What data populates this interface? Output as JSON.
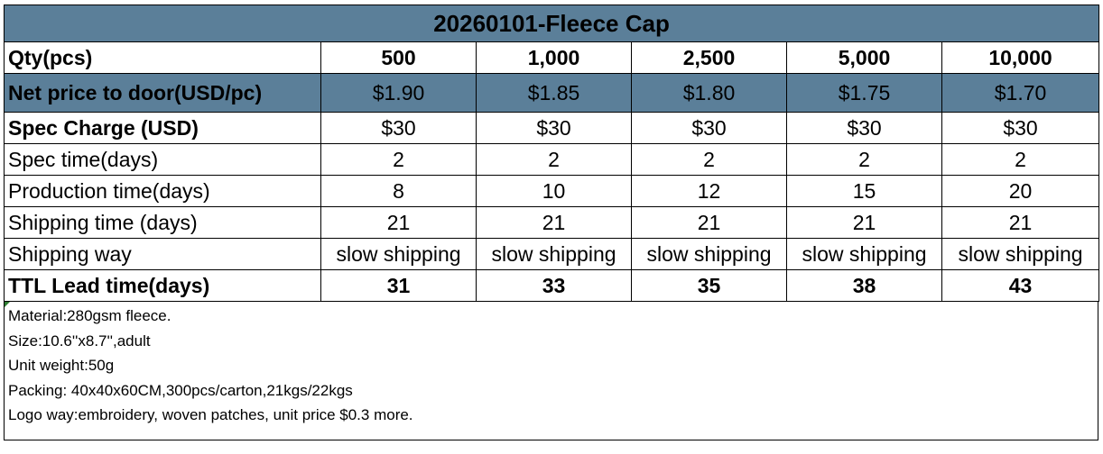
{
  "title": "20260101-Fleece Cap",
  "qty": {
    "label": "Qty(pcs)",
    "values": [
      "500",
      "1,000",
      "2,500",
      "5,000",
      "10,000"
    ]
  },
  "net_price": {
    "label": "Net price to door(USD/pc)",
    "values": [
      "$1.90",
      "$1.85",
      "$1.80",
      "$1.75",
      "$1.70"
    ]
  },
  "spec_charge": {
    "label": "Spec Charge (USD)",
    "values": [
      "$30",
      "$30",
      "$30",
      "$30",
      "$30"
    ]
  },
  "spec_time": {
    "label": "Spec time(days)",
    "values": [
      "2",
      "2",
      "2",
      "2",
      "2"
    ]
  },
  "production_time": {
    "label": "Production time(days)",
    "values": [
      "8",
      "10",
      "12",
      "15",
      "20"
    ]
  },
  "shipping_time": {
    "label": "Shipping time (days)",
    "values": [
      "21",
      "21",
      "21",
      "21",
      "21"
    ]
  },
  "shipping_way": {
    "label": "Shipping way",
    "values": [
      "slow shipping",
      "slow shipping",
      "slow shipping",
      "slow shipping",
      "slow shipping"
    ]
  },
  "ttl_lead_time": {
    "label": "TTL Lead time(days)",
    "values": [
      "31",
      "33",
      "35",
      "38",
      "43"
    ]
  },
  "notes": [
    "Material:280gsm fleece.",
    "Size:10.6''x8.7'',adult",
    "Unit weight:50g",
    "Packing: 40x40x60CM,300pcs/carton,21kgs/22kgs",
    "Logo way:embroidery, woven patches, unit price $0.3 more."
  ],
  "colors": {
    "header_fill": "#5b7f99",
    "marker": "#2e7d32"
  }
}
